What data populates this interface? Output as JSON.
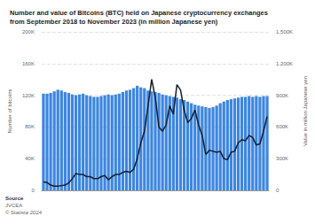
{
  "chart_data": {
    "type": "bar",
    "title": "Number and value of Bitcoins (BTC) held on Japanese cryptocurrency exchanges from September 2018 to November 2023 (in million Japanese yen)",
    "y_label": "Number of bitcoins",
    "y2_label": "Value in million Japanese yen",
    "annotations": [
      "Source",
      "JVCEA",
      "© Statista 2024"
    ],
    "categories": [
      null,
      null,
      null,
      null,
      null,
      null,
      null,
      null,
      null,
      null,
      null,
      null,
      null,
      null,
      null,
      null,
      null,
      null,
      null,
      null,
      null,
      null,
      null,
      null,
      null,
      null,
      null,
      null,
      null,
      null,
      null,
      null,
      null,
      null,
      null,
      null,
      null,
      null,
      null,
      null,
      null,
      null,
      null,
      null,
      null,
      null,
      null,
      null,
      null,
      null,
      null,
      null,
      null,
      null,
      null,
      null,
      null,
      null,
      null,
      null,
      null,
      null,
      null
    ],
    "series": [
      {
        "name": "Number of bitcoins",
        "type": "bar",
        "color": "#3d86e0",
        "values": [
          122000,
          122000,
          123000,
          125000,
          127000,
          126000,
          124000,
          123000,
          121000,
          120000,
          121000,
          122000,
          120000,
          119000,
          118000,
          118000,
          119000,
          120000,
          121000,
          120000,
          121000,
          122000,
          124000,
          126000,
          127000,
          129000,
          132000,
          130000,
          129000,
          126000,
          125000,
          124000,
          123000,
          121000,
          120000,
          119000,
          118000,
          117000,
          115000,
          114000,
          112000,
          110000,
          108000,
          107000,
          106000,
          105000,
          104000,
          105000,
          107000,
          110000,
          112000,
          114000,
          115000,
          116000,
          117000,
          118000,
          118000,
          119000,
          118000,
          119000,
          118000,
          119000,
          119000
        ]
      },
      {
        "name": "Value in million Japanese yen",
        "type": "line",
        "axis": "y2",
        "color": "#141e2b",
        "values": [
          80000,
          75000,
          50000,
          40000,
          40000,
          45000,
          50000,
          70000,
          110000,
          160000,
          150000,
          150000,
          130000,
          130000,
          110000,
          110000,
          130000,
          140000,
          100000,
          130000,
          150000,
          150000,
          170000,
          180000,
          170000,
          200000,
          300000,
          450000,
          560000,
          800000,
          1050000,
          880000,
          600000,
          560000,
          620000,
          800000,
          720000,
          1000000,
          950000,
          760000,
          640000,
          680000,
          760000,
          620000,
          520000,
          340000,
          380000,
          370000,
          360000,
          370000,
          300000,
          290000,
          360000,
          370000,
          450000,
          480000,
          470000,
          520000,
          500000,
          430000,
          440000,
          560000,
          700000
        ]
      }
    ],
    "ylim": [
      0,
      200000
    ],
    "yticks": [
      0,
      {
        "value": 40000,
        "label": "40K"
      },
      {
        "value": 80000,
        "label": "80K"
      },
      {
        "value": 120000,
        "label": "120K"
      },
      {
        "value": 160000,
        "label": "160K"
      },
      {
        "value": 200000,
        "label": "200K"
      }
    ],
    "y2lim": [
      0,
      1500000
    ],
    "y2ticks": [
      0,
      {
        "value": 300000,
        "label": "300K"
      },
      {
        "value": 600000,
        "label": "600K"
      },
      {
        "value": 900000,
        "label": "900K"
      },
      {
        "value": 1200000,
        "label": "1,200K"
      },
      {
        "value": 1500000,
        "label": "1,500K"
      }
    ],
    "grid": true
  }
}
